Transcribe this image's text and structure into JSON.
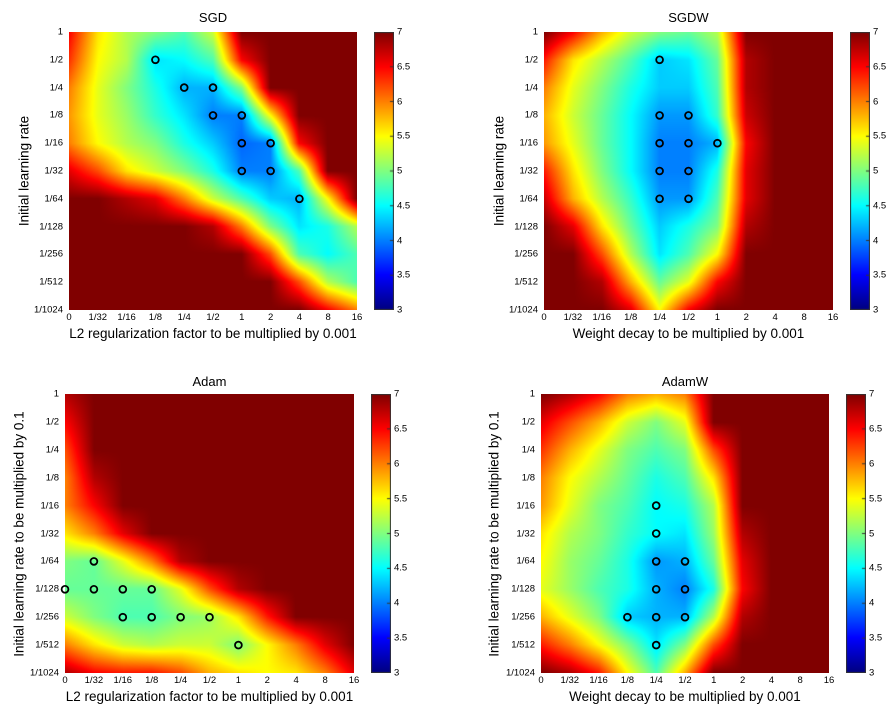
{
  "chart_data": [
    {
      "type": "heatmap",
      "title": "SGD",
      "xlabel": "L2 regularization factor to be multiplied by 0.001",
      "ylabel": "Initial learning rate",
      "x_ticks": [
        "0",
        "1/32",
        "1/16",
        "1/8",
        "1/4",
        "1/2",
        "1",
        "2",
        "4",
        "8",
        "16"
      ],
      "y_ticks": [
        "1",
        "1/2",
        "1/4",
        "1/8",
        "1/16",
        "1/32",
        "1/64",
        "1/128",
        "1/256",
        "1/512",
        "1/1024"
      ],
      "zlim": [
        3,
        7
      ],
      "colorbar_ticks": [
        "3",
        "3.5",
        "4",
        "4.5",
        "5",
        "5.5",
        "6",
        "6.5",
        "7"
      ],
      "colormap": "jet",
      "z": [
        [
          6.5,
          5.6,
          5.2,
          5.0,
          4.8,
          5.3,
          7,
          7,
          7,
          7,
          7
        ],
        [
          6.3,
          5.5,
          5.2,
          4.4,
          4.5,
          4.8,
          6.5,
          7,
          7,
          7,
          7
        ],
        [
          6.0,
          5.4,
          5.0,
          4.6,
          4.2,
          4.2,
          5.0,
          7,
          7,
          7,
          7
        ],
        [
          5.9,
          5.4,
          5.1,
          4.7,
          4.4,
          4.0,
          4.0,
          5.5,
          7,
          7,
          7
        ],
        [
          6.0,
          5.5,
          5.2,
          5.0,
          4.6,
          4.3,
          3.9,
          4.0,
          6.5,
          7,
          7
        ],
        [
          6.6,
          6.2,
          5.6,
          5.3,
          5.0,
          4.6,
          4.0,
          4.0,
          4.8,
          7,
          7
        ],
        [
          7,
          7,
          6.8,
          6.6,
          6.0,
          5.3,
          4.8,
          4.3,
          4.2,
          5.5,
          7
        ],
        [
          7,
          7,
          7,
          7,
          7,
          6.8,
          6.0,
          5.0,
          4.4,
          4.6,
          5.2
        ],
        [
          7,
          7,
          7,
          7,
          7,
          7,
          7,
          6.2,
          4.8,
          4.5,
          4.8
        ],
        [
          7,
          7,
          7,
          7,
          7,
          7,
          7,
          7,
          6.2,
          5.2,
          4.8
        ],
        [
          7,
          7,
          7,
          7,
          7,
          7,
          7,
          7,
          7,
          6.5,
          6.0
        ]
      ],
      "markers": [
        {
          "y": "1/2",
          "x": "1/8"
        },
        {
          "y": "1/4",
          "x": "1/4"
        },
        {
          "y": "1/4",
          "x": "1/2"
        },
        {
          "y": "1/8",
          "x": "1/2"
        },
        {
          "y": "1/8",
          "x": "1"
        },
        {
          "y": "1/16",
          "x": "1"
        },
        {
          "y": "1/16",
          "x": "2"
        },
        {
          "y": "1/32",
          "x": "1"
        },
        {
          "y": "1/32",
          "x": "2"
        },
        {
          "y": "1/64",
          "x": "4"
        }
      ]
    },
    {
      "type": "heatmap",
      "title": "SGDW",
      "xlabel": "Weight decay to be multiplied by 0.001",
      "ylabel": "Initial learning rate",
      "x_ticks": [
        "0",
        "1/32",
        "1/16",
        "1/8",
        "1/4",
        "1/2",
        "1",
        "2",
        "4",
        "8",
        "16"
      ],
      "y_ticks": [
        "1",
        "1/2",
        "1/4",
        "1/8",
        "1/16",
        "1/32",
        "1/64",
        "1/128",
        "1/256",
        "1/512",
        "1/1024"
      ],
      "zlim": [
        3,
        7
      ],
      "colorbar_ticks": [
        "3",
        "3.5",
        "4",
        "4.5",
        "5",
        "5.5",
        "6",
        "6.5",
        "7"
      ],
      "colormap": "jet",
      "z": [
        [
          7,
          6.5,
          5.8,
          5.3,
          5.0,
          4.9,
          5.2,
          7,
          7,
          7,
          7
        ],
        [
          6.4,
          5.6,
          5.2,
          4.8,
          4.3,
          4.4,
          4.9,
          6.8,
          7,
          7,
          7
        ],
        [
          6.0,
          5.4,
          5.0,
          4.6,
          4.3,
          4.3,
          4.8,
          6.8,
          7,
          7,
          7
        ],
        [
          5.8,
          5.3,
          4.9,
          4.5,
          4.1,
          4.1,
          4.7,
          6.7,
          7,
          7,
          7
        ],
        [
          5.9,
          5.4,
          4.9,
          4.5,
          4.0,
          4.0,
          4.2,
          6.5,
          7,
          7,
          7
        ],
        [
          6.4,
          5.6,
          5.0,
          4.5,
          4.0,
          4.0,
          4.6,
          6.6,
          7,
          7,
          7
        ],
        [
          6.7,
          5.8,
          5.2,
          4.7,
          4.1,
          4.1,
          4.8,
          6.6,
          7,
          7,
          7
        ],
        [
          7,
          6.6,
          5.6,
          4.9,
          4.3,
          4.6,
          5.0,
          6.8,
          7,
          7,
          7
        ],
        [
          7,
          7,
          6.2,
          5.2,
          4.4,
          4.8,
          5.5,
          7,
          7,
          7,
          7
        ],
        [
          7,
          7,
          6.8,
          5.8,
          4.9,
          5.4,
          6.5,
          7,
          7,
          7,
          7
        ],
        [
          7,
          7,
          7,
          6.6,
          5.5,
          6.5,
          7,
          7,
          7,
          7,
          7
        ]
      ],
      "markers": [
        {
          "y": "1/2",
          "x": "1/4"
        },
        {
          "y": "1/8",
          "x": "1/4"
        },
        {
          "y": "1/8",
          "x": "1/2"
        },
        {
          "y": "1/16",
          "x": "1/4"
        },
        {
          "y": "1/16",
          "x": "1/2"
        },
        {
          "y": "1/16",
          "x": "1"
        },
        {
          "y": "1/32",
          "x": "1/4"
        },
        {
          "y": "1/32",
          "x": "1/2"
        },
        {
          "y": "1/64",
          "x": "1/4"
        },
        {
          "y": "1/64",
          "x": "1/2"
        }
      ]
    },
    {
      "type": "heatmap",
      "title": "Adam",
      "xlabel": "L2 regularization factor to be multiplied by 0.001",
      "ylabel": "Initial learning rate to be multiplied by 0.1",
      "x_ticks": [
        "0",
        "1/32",
        "1/16",
        "1/8",
        "1/4",
        "1/2",
        "1",
        "2",
        "4",
        "8",
        "16"
      ],
      "y_ticks": [
        "1",
        "1/2",
        "1/4",
        "1/8",
        "1/16",
        "1/32",
        "1/64",
        "1/128",
        "1/256",
        "1/512",
        "1/1024"
      ],
      "zlim": [
        3,
        7
      ],
      "colorbar_ticks": [
        "3",
        "3.5",
        "4",
        "4.5",
        "5",
        "5.5",
        "6",
        "6.5",
        "7"
      ],
      "colormap": "jet",
      "z": [
        [
          6.8,
          7,
          7,
          7,
          7,
          7,
          7,
          7,
          7,
          7,
          7
        ],
        [
          6.5,
          7,
          7,
          7,
          7,
          7,
          7,
          7,
          7,
          7,
          7
        ],
        [
          6.2,
          7,
          7,
          7,
          7,
          7,
          7,
          7,
          7,
          7,
          7
        ],
        [
          6.0,
          6.8,
          7,
          7,
          7,
          7,
          7,
          7,
          7,
          7,
          7
        ],
        [
          6.0,
          6.5,
          7,
          7,
          7,
          7,
          7,
          7,
          7,
          7,
          7
        ],
        [
          5.6,
          6.0,
          6.6,
          7,
          7,
          7,
          7,
          7,
          7,
          7,
          7
        ],
        [
          5.0,
          4.9,
          5.4,
          6.0,
          6.8,
          7,
          7,
          7,
          7,
          7,
          7
        ],
        [
          4.9,
          4.9,
          4.9,
          4.9,
          5.4,
          6.2,
          6.8,
          7,
          7,
          7,
          7
        ],
        [
          5.3,
          5.0,
          4.8,
          4.8,
          5.0,
          5.1,
          5.6,
          6.4,
          7,
          7,
          7
        ],
        [
          6.0,
          5.6,
          5.3,
          5.2,
          5.3,
          5.3,
          5.0,
          5.5,
          6.0,
          6.6,
          7
        ],
        [
          6.8,
          6.5,
          6.4,
          6.4,
          6.2,
          5.8,
          5.6,
          5.5,
          5.6,
          6.0,
          6.6
        ]
      ],
      "markers": [
        {
          "y": "1/64",
          "x": "1/32"
        },
        {
          "y": "1/128",
          "x": "0"
        },
        {
          "y": "1/128",
          "x": "1/32"
        },
        {
          "y": "1/128",
          "x": "1/16"
        },
        {
          "y": "1/128",
          "x": "1/8"
        },
        {
          "y": "1/256",
          "x": "1/16"
        },
        {
          "y": "1/256",
          "x": "1/8"
        },
        {
          "y": "1/256",
          "x": "1/4"
        },
        {
          "y": "1/256",
          "x": "1/2"
        },
        {
          "y": "1/512",
          "x": "1"
        }
      ]
    },
    {
      "type": "heatmap",
      "title": "AdamW",
      "xlabel": "Weight decay to be multiplied by 0.001",
      "ylabel": "Initial learning rate to be multiplied by 0.1",
      "x_ticks": [
        "0",
        "1/32",
        "1/16",
        "1/8",
        "1/4",
        "1/2",
        "1",
        "2",
        "4",
        "8",
        "16"
      ],
      "y_ticks": [
        "1",
        "1/2",
        "1/4",
        "1/8",
        "1/16",
        "1/32",
        "1/64",
        "1/128",
        "1/256",
        "1/512",
        "1/1024"
      ],
      "zlim": [
        3,
        7
      ],
      "colorbar_ticks": [
        "3",
        "3.5",
        "4",
        "4.5",
        "5",
        "5.5",
        "6",
        "6.5",
        "7"
      ],
      "colormap": "jet",
      "z": [
        [
          7,
          6.8,
          6.5,
          6.0,
          5.8,
          6.0,
          7,
          7,
          7,
          7,
          7
        ],
        [
          6.6,
          6.2,
          5.8,
          5.3,
          5.0,
          5.4,
          7,
          7,
          7,
          7,
          7
        ],
        [
          6.3,
          5.8,
          5.4,
          5.0,
          4.8,
          5.0,
          6.2,
          7,
          7,
          7,
          7
        ],
        [
          6.0,
          5.5,
          5.2,
          4.9,
          4.6,
          4.8,
          5.6,
          7,
          7,
          7,
          7
        ],
        [
          5.9,
          5.4,
          5.0,
          4.8,
          4.5,
          4.6,
          5.2,
          7,
          7,
          7,
          7
        ],
        [
          5.6,
          5.2,
          5.0,
          4.7,
          4.5,
          4.4,
          5.1,
          6.8,
          7,
          7,
          7
        ],
        [
          5.5,
          5.1,
          4.9,
          4.6,
          4.1,
          4.2,
          4.9,
          6.6,
          7,
          7,
          7
        ],
        [
          5.4,
          5.1,
          4.8,
          4.6,
          4.2,
          4.0,
          4.6,
          6.5,
          7,
          7,
          7
        ],
        [
          5.8,
          5.4,
          5.0,
          4.3,
          4.2,
          4.2,
          5.2,
          6.8,
          7,
          7,
          7
        ],
        [
          6.4,
          6.0,
          5.5,
          5.0,
          4.4,
          5.0,
          6.2,
          7,
          7,
          7,
          7
        ],
        [
          7,
          6.8,
          6.4,
          5.5,
          4.8,
          5.8,
          7,
          7,
          7,
          7,
          7
        ]
      ],
      "markers": [
        {
          "y": "1/16",
          "x": "1/4"
        },
        {
          "y": "1/32",
          "x": "1/4"
        },
        {
          "y": "1/64",
          "x": "1/4"
        },
        {
          "y": "1/64",
          "x": "1/2"
        },
        {
          "y": "1/128",
          "x": "1/4"
        },
        {
          "y": "1/128",
          "x": "1/2"
        },
        {
          "y": "1/256",
          "x": "1/8"
        },
        {
          "y": "1/256",
          "x": "1/4"
        },
        {
          "y": "1/256",
          "x": "1/2"
        },
        {
          "y": "1/512",
          "x": "1/4"
        }
      ]
    }
  ]
}
